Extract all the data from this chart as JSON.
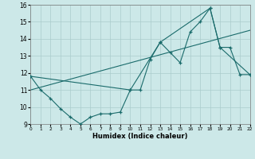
{
  "xlabel": "Humidex (Indice chaleur)",
  "xlim": [
    0,
    22
  ],
  "ylim": [
    9,
    16
  ],
  "yticks": [
    9,
    10,
    11,
    12,
    13,
    14,
    15,
    16
  ],
  "xticks": [
    0,
    1,
    2,
    3,
    4,
    5,
    6,
    7,
    8,
    9,
    10,
    11,
    12,
    13,
    14,
    15,
    16,
    17,
    18,
    19,
    20,
    21,
    22
  ],
  "bg_color": "#cce8e8",
  "grid_color": "#aacccc",
  "line_color": "#1a6b6b",
  "line1_x": [
    0,
    1,
    2,
    3,
    4,
    5,
    6,
    7,
    8,
    9,
    10,
    11,
    12,
    13,
    14,
    15,
    16,
    17,
    18,
    19,
    20,
    21,
    22
  ],
  "line1_y": [
    11.8,
    11.0,
    10.5,
    9.9,
    9.4,
    9.0,
    9.4,
    9.6,
    9.6,
    9.7,
    11.0,
    11.0,
    12.8,
    13.8,
    13.2,
    12.6,
    14.4,
    15.0,
    15.8,
    13.5,
    13.5,
    11.9,
    11.9
  ],
  "line2_x": [
    0,
    10,
    13,
    18,
    19,
    22
  ],
  "line2_y": [
    11.8,
    11.0,
    13.8,
    15.8,
    13.5,
    11.9
  ],
  "line3_x": [
    0,
    22
  ],
  "line3_y": [
    11.0,
    14.5
  ]
}
